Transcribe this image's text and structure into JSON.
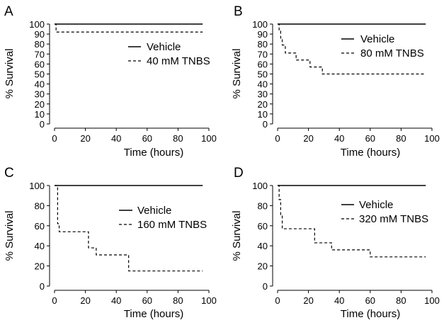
{
  "chart_data": [
    {
      "panel": "A",
      "type": "line",
      "xlabel": "Time (hours)",
      "ylabel": "% Survival",
      "xlim": [
        0,
        100
      ],
      "ylim": [
        0,
        100
      ],
      "xticks": [
        0,
        20,
        40,
        60,
        80,
        100
      ],
      "yticks": [
        0,
        10,
        20,
        30,
        40,
        50,
        60,
        70,
        80,
        90,
        100
      ],
      "legend_position": "right",
      "series": [
        {
          "name": "Vehicle",
          "style": "solid",
          "step": [
            [
              0,
              100
            ],
            [
              96,
              100
            ]
          ]
        },
        {
          "name": "40 mM TNBS",
          "style": "dashed",
          "step": [
            [
              0,
              100
            ],
            [
              1,
              92
            ],
            [
              96,
              92
            ]
          ]
        }
      ]
    },
    {
      "panel": "B",
      "type": "line",
      "xlabel": "Time (hours)",
      "ylabel": "% Survival",
      "xlim": [
        0,
        100
      ],
      "ylim": [
        0,
        100
      ],
      "xticks": [
        0,
        20,
        40,
        60,
        80,
        100
      ],
      "yticks": [
        0,
        10,
        20,
        30,
        40,
        50,
        60,
        70,
        80,
        90,
        100
      ],
      "legend_position": "top-right",
      "series": [
        {
          "name": "Vehicle",
          "style": "solid",
          "step": [
            [
              0,
              100
            ],
            [
              96,
              100
            ]
          ]
        },
        {
          "name": "80 mM TNBS",
          "style": "dashed",
          "step": [
            [
              0,
              100
            ],
            [
              1,
              93
            ],
            [
              2,
              86
            ],
            [
              3,
              79
            ],
            [
              5,
              71
            ],
            [
              12,
              64
            ],
            [
              21,
              57
            ],
            [
              29,
              50
            ],
            [
              96,
              50
            ]
          ]
        }
      ]
    },
    {
      "panel": "C",
      "type": "line",
      "xlabel": "Time (hours)",
      "ylabel": "% Survival",
      "xlim": [
        0,
        100
      ],
      "ylim": [
        0,
        100
      ],
      "xticks": [
        0,
        20,
        40,
        60,
        80,
        100
      ],
      "yticks": [
        0,
        20,
        40,
        60,
        80,
        100
      ],
      "legend_position": "right",
      "series": [
        {
          "name": "Vehicle",
          "style": "solid",
          "step": [
            [
              0,
              100
            ],
            [
              96,
              100
            ]
          ]
        },
        {
          "name": "160 mM TNBS",
          "style": "dashed",
          "step": [
            [
              0,
              100
            ],
            [
              2,
              62
            ],
            [
              3,
              54
            ],
            [
              22,
              38
            ],
            [
              27,
              31
            ],
            [
              48,
              15
            ],
            [
              96,
              15
            ]
          ]
        }
      ]
    },
    {
      "panel": "D",
      "type": "line",
      "xlabel": "Time (hours)",
      "ylabel": "% Survival",
      "xlim": [
        0,
        100
      ],
      "ylim": [
        0,
        100
      ],
      "xticks": [
        0,
        20,
        40,
        60,
        80,
        100
      ],
      "yticks": [
        0,
        20,
        40,
        60,
        80,
        100
      ],
      "legend_position": "top-right",
      "series": [
        {
          "name": "Vehicle",
          "style": "solid",
          "step": [
            [
              0,
              100
            ],
            [
              96,
              100
            ]
          ]
        },
        {
          "name": "320 mM TNBS",
          "style": "dashed",
          "step": [
            [
              0,
              100
            ],
            [
              1,
              86
            ],
            [
              2,
              71
            ],
            [
              3,
              57
            ],
            [
              24,
              43
            ],
            [
              35,
              36
            ],
            [
              60,
              29
            ],
            [
              96,
              29
            ]
          ]
        }
      ]
    }
  ]
}
